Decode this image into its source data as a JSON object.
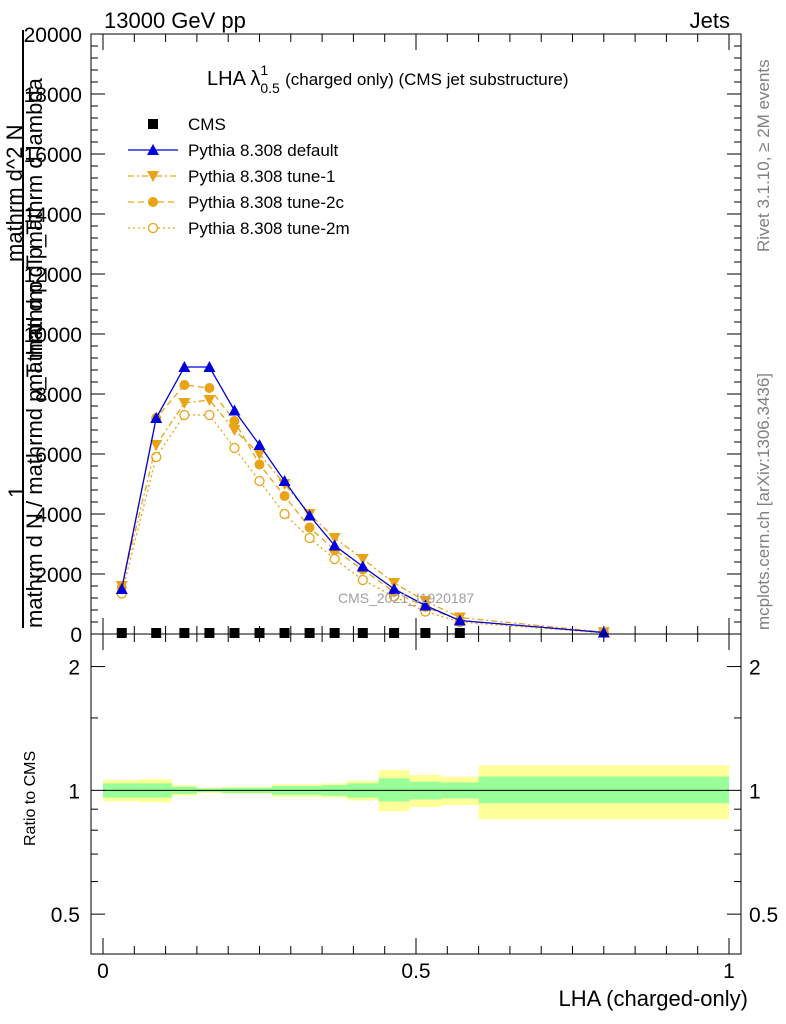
{
  "header": {
    "left_label": "13000 GeV pp",
    "right_label": "Jets"
  },
  "side_labels": {
    "rivet": "Rivet 3.1.10, ≥ 2M events",
    "mcplots": "mcplots.cern.ch [arXiv:1306.3436]"
  },
  "watermark": "CMS_2021_I1920187",
  "legend_title": {
    "main": "LHA λ",
    "sup": "1",
    "sub": "0.5",
    "rest": " (charged only) (CMS jet substructure)"
  },
  "y_label_main": {
    "numerator_1": "1",
    "denominator_1": "mathrm d N / mathrmd p_T mathrm d p_T",
    "numerator_2": "mathrm d^2 N",
    "denominator_2": "mathrm d p_T mathrm d lambda"
  },
  "colors": {
    "cms": "#000000",
    "default": "#0000dd",
    "tunes": "#e8a317",
    "band_inner": "#99ff99",
    "band_outer": "#ffff99"
  },
  "chart_data": [
    {
      "type": "line",
      "title": "LHA λ^1_0.5 (charged only) (CMS jet substructure)",
      "xlabel": "LHA (charged-only)",
      "ylabel": "1 / mathrm d N / mathrmd p_T mathrm d p_T  mathrm d^2 N / mathrm d p_T mathrm d lambda",
      "xlim": [
        0,
        1
      ],
      "ylim": [
        0,
        20000
      ],
      "yticks": [
        0,
        2000,
        4000,
        6000,
        8000,
        10000,
        12000,
        14000,
        16000,
        18000,
        20000
      ],
      "ytick_labels": [
        "0",
        "2000",
        "4000",
        "6000",
        "8000",
        "10000",
        "12000",
        "14000",
        "16000",
        "18000",
        "20000"
      ],
      "xticks": [
        0,
        0.5,
        1
      ],
      "xtick_labels": [
        "0",
        "0.5",
        "1"
      ],
      "legend_position": "top-left",
      "series": [
        {
          "name": "CMS",
          "marker": "square",
          "x": [
            0.03,
            0.085,
            0.13,
            0.17,
            0.21,
            0.25,
            0.29,
            0.33,
            0.37,
            0.415,
            0.465,
            0.515,
            0.57
          ],
          "y": [
            0,
            0,
            0,
            0,
            0,
            0,
            0,
            0,
            0,
            0,
            0,
            0,
            0
          ]
        },
        {
          "name": "Pythia 8.308 default",
          "marker": "triangle-up",
          "line": "solid",
          "x": [
            0.03,
            0.085,
            0.13,
            0.17,
            0.21,
            0.25,
            0.29,
            0.33,
            0.37,
            0.415,
            0.465,
            0.515,
            0.57,
            0.8
          ],
          "y": [
            1500,
            7200,
            8900,
            8900,
            7450,
            6300,
            5100,
            3950,
            2950,
            2250,
            1500,
            950,
            450,
            50
          ]
        },
        {
          "name": "Pythia 8.308 tune-1",
          "marker": "triangle-down",
          "line": "dash-dot",
          "x": [
            0.03,
            0.085,
            0.13,
            0.17,
            0.21,
            0.25,
            0.29,
            0.33,
            0.37,
            0.415,
            0.465,
            0.515,
            0.57,
            0.8
          ],
          "y": [
            1600,
            6300,
            7700,
            7800,
            6800,
            6000,
            5000,
            4000,
            3200,
            2500,
            1700,
            1100,
            550,
            60
          ]
        },
        {
          "name": "Pythia 8.308 tune-2c",
          "marker": "circle",
          "line": "dashed",
          "x": [
            0.03,
            0.085,
            0.13,
            0.17,
            0.21,
            0.25,
            0.29,
            0.33,
            0.37,
            0.415,
            0.465,
            0.515,
            0.57,
            0.8
          ],
          "y": [
            1550,
            7200,
            8300,
            8200,
            7100,
            5650,
            4600,
            3550,
            2800,
            2150,
            1400,
            900,
            450,
            50
          ]
        },
        {
          "name": "Pythia 8.308 tune-2m",
          "marker": "circle-open",
          "line": "dotted",
          "x": [
            0.03,
            0.085,
            0.13,
            0.17,
            0.21,
            0.25,
            0.29,
            0.33,
            0.37,
            0.415,
            0.465,
            0.515,
            0.57,
            0.8
          ],
          "y": [
            1350,
            5900,
            7300,
            7300,
            6200,
            5100,
            4000,
            3200,
            2500,
            1800,
            1250,
            750,
            400,
            40
          ]
        }
      ]
    },
    {
      "type": "area",
      "title": "",
      "xlabel": "LHA (charged-only)",
      "ylabel": "Ratio to CMS",
      "xlim": [
        0,
        1
      ],
      "ylim": [
        0.4,
        2.4
      ],
      "log_y": true,
      "yticks": [
        0.5,
        1,
        2
      ],
      "ytick_labels": [
        "0.5",
        "1",
        "2"
      ],
      "xticks": [
        0,
        0.5,
        1
      ],
      "xtick_labels": [
        "0",
        "0.5",
        "1"
      ],
      "reference_line": 1,
      "bins": [
        {
          "lo": 0.0,
          "hi": 0.06,
          "inner": [
            0.96,
            1.04
          ],
          "outer": [
            0.94,
            1.06
          ]
        },
        {
          "lo": 0.06,
          "hi": 0.11,
          "inner": [
            0.96,
            1.04
          ],
          "outer": [
            0.935,
            1.065
          ]
        },
        {
          "lo": 0.11,
          "hi": 0.15,
          "inner": [
            0.98,
            1.02
          ],
          "outer": [
            0.97,
            1.03
          ]
        },
        {
          "lo": 0.15,
          "hi": 0.19,
          "inner": [
            0.99,
            1.01
          ],
          "outer": [
            0.985,
            1.015
          ]
        },
        {
          "lo": 0.19,
          "hi": 0.23,
          "inner": [
            0.985,
            1.015
          ],
          "outer": [
            0.98,
            1.02
          ]
        },
        {
          "lo": 0.23,
          "hi": 0.27,
          "inner": [
            0.985,
            1.015
          ],
          "outer": [
            0.98,
            1.02
          ]
        },
        {
          "lo": 0.27,
          "hi": 0.31,
          "inner": [
            0.975,
            1.025
          ],
          "outer": [
            0.965,
            1.035
          ]
        },
        {
          "lo": 0.31,
          "hi": 0.35,
          "inner": [
            0.975,
            1.025
          ],
          "outer": [
            0.965,
            1.035
          ]
        },
        {
          "lo": 0.35,
          "hi": 0.39,
          "inner": [
            0.97,
            1.03
          ],
          "outer": [
            0.96,
            1.04
          ]
        },
        {
          "lo": 0.39,
          "hi": 0.44,
          "inner": [
            0.96,
            1.04
          ],
          "outer": [
            0.945,
            1.055
          ]
        },
        {
          "lo": 0.44,
          "hi": 0.49,
          "inner": [
            0.94,
            1.07
          ],
          "outer": [
            0.89,
            1.12
          ]
        },
        {
          "lo": 0.49,
          "hi": 0.54,
          "inner": [
            0.95,
            1.05
          ],
          "outer": [
            0.91,
            1.09
          ]
        },
        {
          "lo": 0.54,
          "hi": 0.6,
          "inner": [
            0.955,
            1.045
          ],
          "outer": [
            0.92,
            1.08
          ]
        },
        {
          "lo": 0.6,
          "hi": 1.0,
          "inner": [
            0.93,
            1.08
          ],
          "outer": [
            0.85,
            1.15
          ]
        }
      ]
    }
  ]
}
